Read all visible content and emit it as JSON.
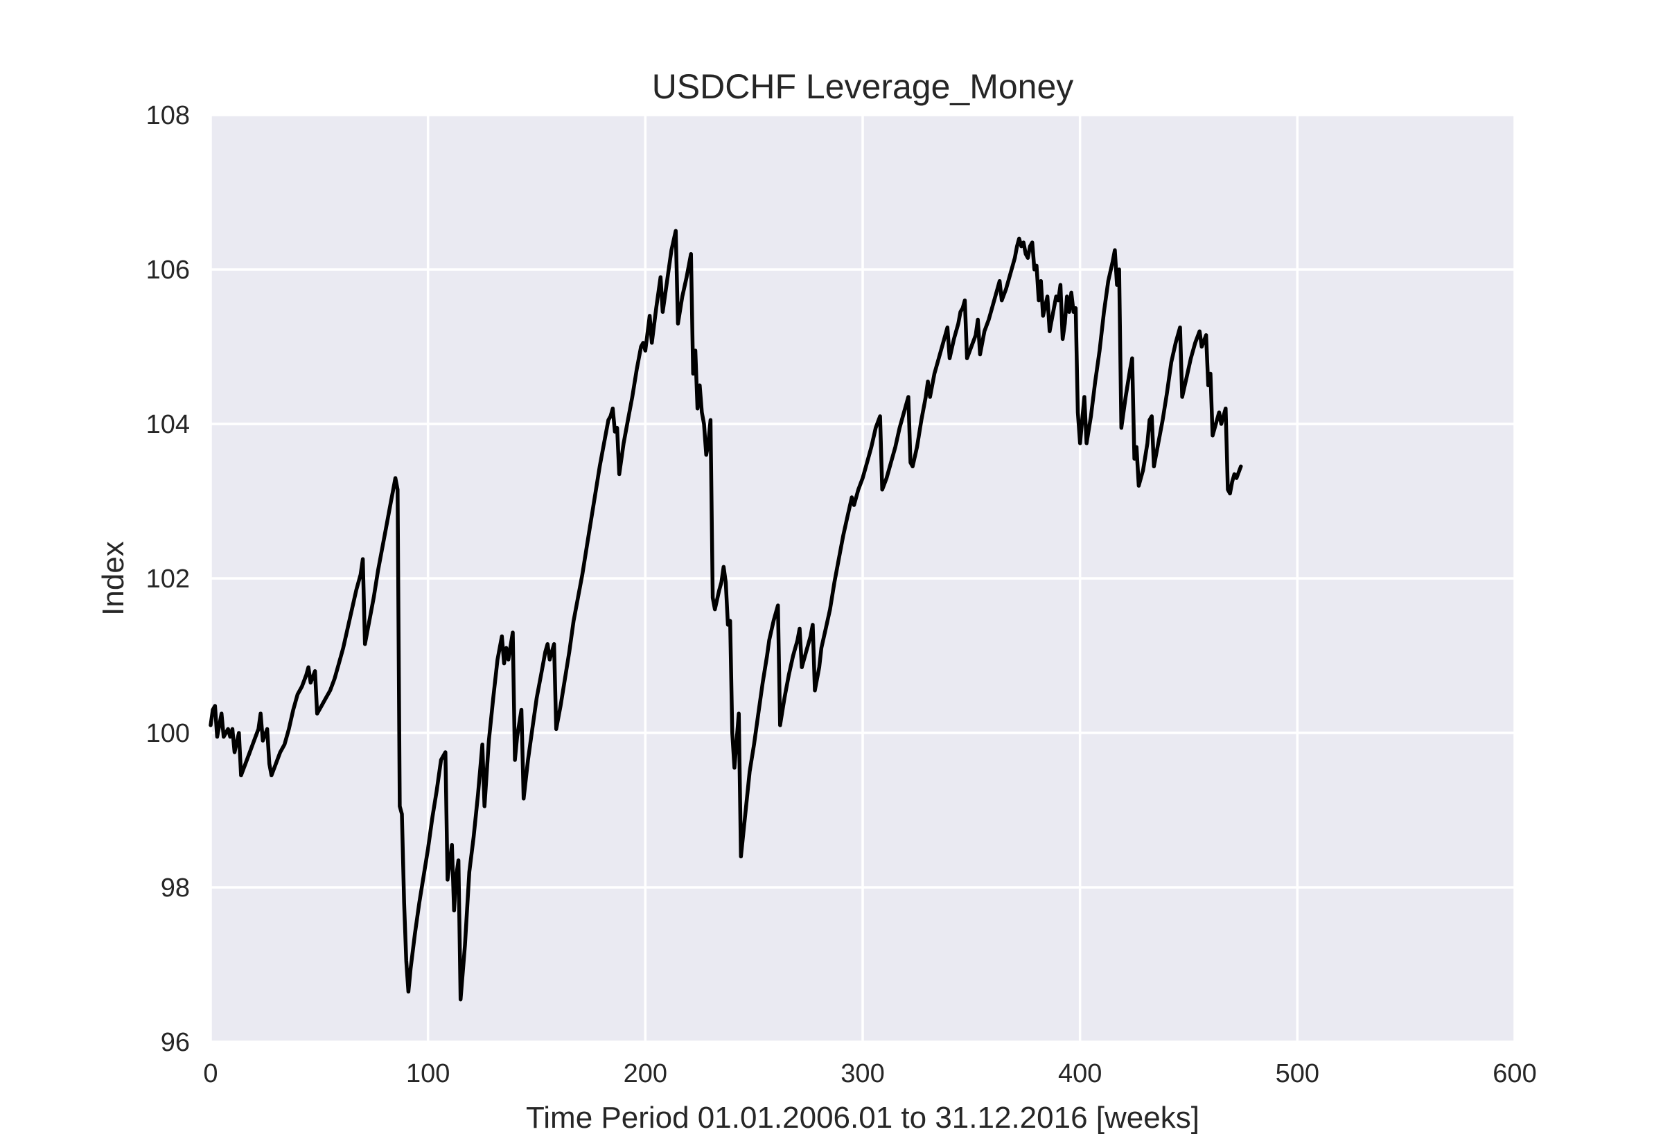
{
  "chart_data": {
    "type": "line",
    "title": "USDCHF Leverage_Money",
    "xlabel": "Time Period 01.01.2006.01 to 31.12.2016 [weeks]",
    "ylabel": "Index",
    "xlim": [
      0,
      600
    ],
    "ylim": [
      96,
      108
    ],
    "xticks": [
      0,
      100,
      200,
      300,
      400,
      500,
      600
    ],
    "yticks": [
      96,
      98,
      100,
      102,
      104,
      106,
      108
    ],
    "grid": true,
    "legend": "none",
    "colors": {
      "background": "#eaeaf2",
      "grid": "#ffffff",
      "line": "#000000"
    },
    "series": [
      {
        "values": [
          [
            0,
            100.1
          ],
          [
            1,
            100.3
          ],
          [
            2,
            100.35
          ],
          [
            3,
            99.95
          ],
          [
            5,
            100.25
          ],
          [
            6,
            99.95
          ],
          [
            8,
            100.05
          ],
          [
            9,
            99.95
          ],
          [
            10,
            100.05
          ],
          [
            11,
            99.75
          ],
          [
            13,
            100.0
          ],
          [
            14,
            99.45
          ],
          [
            16,
            99.6
          ],
          [
            18,
            99.75
          ],
          [
            20,
            99.9
          ],
          [
            22,
            100.05
          ],
          [
            23,
            100.25
          ],
          [
            24,
            99.9
          ],
          [
            26,
            100.05
          ],
          [
            27,
            99.6
          ],
          [
            28,
            99.45
          ],
          [
            30,
            99.6
          ],
          [
            32,
            99.75
          ],
          [
            34,
            99.85
          ],
          [
            36,
            100.05
          ],
          [
            38,
            100.3
          ],
          [
            40,
            100.5
          ],
          [
            42,
            100.6
          ],
          [
            44,
            100.75
          ],
          [
            45,
            100.85
          ],
          [
            46,
            100.65
          ],
          [
            48,
            100.8
          ],
          [
            49,
            100.25
          ],
          [
            51,
            100.35
          ],
          [
            53,
            100.45
          ],
          [
            55,
            100.55
          ],
          [
            57,
            100.7
          ],
          [
            59,
            100.9
          ],
          [
            61,
            101.1
          ],
          [
            63,
            101.35
          ],
          [
            65,
            101.6
          ],
          [
            67,
            101.85
          ],
          [
            69,
            102.05
          ],
          [
            70,
            102.25
          ],
          [
            71,
            101.15
          ],
          [
            73,
            101.45
          ],
          [
            75,
            101.75
          ],
          [
            77,
            102.1
          ],
          [
            79,
            102.4
          ],
          [
            81,
            102.7
          ],
          [
            83,
            103.0
          ],
          [
            84,
            103.15
          ],
          [
            85,
            103.3
          ],
          [
            86,
            103.15
          ],
          [
            87,
            99.05
          ],
          [
            88,
            98.95
          ],
          [
            89,
            97.8
          ],
          [
            90,
            97.05
          ],
          [
            91,
            96.65
          ],
          [
            92,
            96.95
          ],
          [
            94,
            97.4
          ],
          [
            96,
            97.8
          ],
          [
            98,
            98.15
          ],
          [
            100,
            98.5
          ],
          [
            102,
            98.9
          ],
          [
            104,
            99.25
          ],
          [
            106,
            99.65
          ],
          [
            108,
            99.75
          ],
          [
            109,
            98.1
          ],
          [
            111,
            98.55
          ],
          [
            112,
            97.7
          ],
          [
            113,
            98.15
          ],
          [
            114,
            98.35
          ],
          [
            115,
            96.55
          ],
          [
            117,
            97.25
          ],
          [
            119,
            98.2
          ],
          [
            121,
            98.65
          ],
          [
            123,
            99.2
          ],
          [
            125,
            99.85
          ],
          [
            126,
            99.05
          ],
          [
            128,
            99.9
          ],
          [
            130,
            100.45
          ],
          [
            132,
            100.95
          ],
          [
            134,
            101.25
          ],
          [
            135,
            100.9
          ],
          [
            136,
            101.1
          ],
          [
            137,
            100.95
          ],
          [
            139,
            101.3
          ],
          [
            140,
            99.65
          ],
          [
            141,
            99.95
          ],
          [
            143,
            100.3
          ],
          [
            144,
            99.15
          ],
          [
            146,
            99.65
          ],
          [
            148,
            100.05
          ],
          [
            150,
            100.45
          ],
          [
            152,
            100.75
          ],
          [
            154,
            101.05
          ],
          [
            155,
            101.15
          ],
          [
            156,
            100.95
          ],
          [
            158,
            101.15
          ],
          [
            159,
            100.05
          ],
          [
            161,
            100.35
          ],
          [
            163,
            100.7
          ],
          [
            165,
            101.05
          ],
          [
            167,
            101.45
          ],
          [
            169,
            101.75
          ],
          [
            171,
            102.05
          ],
          [
            173,
            102.4
          ],
          [
            175,
            102.75
          ],
          [
            177,
            103.1
          ],
          [
            179,
            103.45
          ],
          [
            181,
            103.75
          ],
          [
            183,
            104.05
          ],
          [
            184,
            104.1
          ],
          [
            185,
            104.2
          ],
          [
            186,
            103.9
          ],
          [
            187,
            103.95
          ],
          [
            188,
            103.35
          ],
          [
            190,
            103.75
          ],
          [
            192,
            104.05
          ],
          [
            194,
            104.35
          ],
          [
            196,
            104.7
          ],
          [
            198,
            105.0
          ],
          [
            199,
            105.05
          ],
          [
            200,
            104.95
          ],
          [
            202,
            105.4
          ],
          [
            203,
            105.05
          ],
          [
            205,
            105.5
          ],
          [
            207,
            105.9
          ],
          [
            208,
            105.45
          ],
          [
            210,
            105.85
          ],
          [
            212,
            106.25
          ],
          [
            214,
            106.5
          ],
          [
            215,
            105.3
          ],
          [
            217,
            105.65
          ],
          [
            219,
            105.9
          ],
          [
            221,
            106.2
          ],
          [
            222,
            104.65
          ],
          [
            223,
            104.95
          ],
          [
            224,
            104.2
          ],
          [
            225,
            104.5
          ],
          [
            226,
            104.15
          ],
          [
            227,
            104.0
          ],
          [
            228,
            103.6
          ],
          [
            229,
            103.75
          ],
          [
            230,
            104.05
          ],
          [
            231,
            101.75
          ],
          [
            232,
            101.6
          ],
          [
            234,
            101.85
          ],
          [
            235,
            101.95
          ],
          [
            236,
            102.15
          ],
          [
            237,
            101.95
          ],
          [
            238,
            101.4
          ],
          [
            239,
            101.45
          ],
          [
            240,
            100.0
          ],
          [
            241,
            99.55
          ],
          [
            243,
            100.25
          ],
          [
            244,
            98.4
          ],
          [
            246,
            98.95
          ],
          [
            248,
            99.5
          ],
          [
            250,
            99.85
          ],
          [
            252,
            100.25
          ],
          [
            254,
            100.65
          ],
          [
            256,
            101.0
          ],
          [
            257,
            101.2
          ],
          [
            259,
            101.45
          ],
          [
            261,
            101.65
          ],
          [
            262,
            100.1
          ],
          [
            264,
            100.45
          ],
          [
            266,
            100.75
          ],
          [
            268,
            101.0
          ],
          [
            270,
            101.2
          ],
          [
            271,
            101.35
          ],
          [
            272,
            100.85
          ],
          [
            274,
            101.05
          ],
          [
            276,
            101.25
          ],
          [
            277,
            101.4
          ],
          [
            278,
            100.55
          ],
          [
            280,
            100.85
          ],
          [
            281,
            101.1
          ],
          [
            283,
            101.35
          ],
          [
            285,
            101.6
          ],
          [
            287,
            101.95
          ],
          [
            289,
            102.25
          ],
          [
            291,
            102.55
          ],
          [
            293,
            102.8
          ],
          [
            295,
            103.05
          ],
          [
            296,
            102.95
          ],
          [
            298,
            103.15
          ],
          [
            300,
            103.3
          ],
          [
            302,
            103.5
          ],
          [
            304,
            103.7
          ],
          [
            306,
            103.95
          ],
          [
            308,
            104.1
          ],
          [
            309,
            103.15
          ],
          [
            311,
            103.3
          ],
          [
            313,
            103.5
          ],
          [
            315,
            103.7
          ],
          [
            317,
            103.95
          ],
          [
            319,
            104.15
          ],
          [
            321,
            104.35
          ],
          [
            322,
            103.5
          ],
          [
            323,
            103.45
          ],
          [
            325,
            103.7
          ],
          [
            327,
            104.05
          ],
          [
            329,
            104.35
          ],
          [
            330,
            104.55
          ],
          [
            331,
            104.35
          ],
          [
            333,
            104.65
          ],
          [
            335,
            104.85
          ],
          [
            337,
            105.05
          ],
          [
            339,
            105.25
          ],
          [
            340,
            104.85
          ],
          [
            342,
            105.1
          ],
          [
            344,
            105.3
          ],
          [
            345,
            105.45
          ],
          [
            346,
            105.5
          ],
          [
            347,
            105.6
          ],
          [
            348,
            104.85
          ],
          [
            350,
            105.0
          ],
          [
            352,
            105.15
          ],
          [
            353,
            105.35
          ],
          [
            354,
            104.9
          ],
          [
            356,
            105.2
          ],
          [
            358,
            105.35
          ],
          [
            360,
            105.55
          ],
          [
            362,
            105.75
          ],
          [
            363,
            105.85
          ],
          [
            364,
            105.6
          ],
          [
            366,
            105.75
          ],
          [
            368,
            105.95
          ],
          [
            370,
            106.15
          ],
          [
            371,
            106.3
          ],
          [
            372,
            106.4
          ],
          [
            373,
            106.3
          ],
          [
            374,
            106.35
          ],
          [
            375,
            106.2
          ],
          [
            376,
            106.15
          ],
          [
            377,
            106.3
          ],
          [
            378,
            106.35
          ],
          [
            379,
            106.0
          ],
          [
            380,
            106.05
          ],
          [
            381,
            105.6
          ],
          [
            382,
            105.85
          ],
          [
            383,
            105.4
          ],
          [
            385,
            105.65
          ],
          [
            386,
            105.2
          ],
          [
            388,
            105.5
          ],
          [
            389,
            105.65
          ],
          [
            390,
            105.6
          ],
          [
            391,
            105.8
          ],
          [
            392,
            105.1
          ],
          [
            393,
            105.3
          ],
          [
            394,
            105.65
          ],
          [
            395,
            105.45
          ],
          [
            396,
            105.7
          ],
          [
            397,
            105.45
          ],
          [
            398,
            105.5
          ],
          [
            399,
            104.15
          ],
          [
            400,
            103.75
          ],
          [
            402,
            104.35
          ],
          [
            403,
            103.75
          ],
          [
            405,
            104.1
          ],
          [
            407,
            104.55
          ],
          [
            409,
            104.95
          ],
          [
            411,
            105.45
          ],
          [
            413,
            105.85
          ],
          [
            415,
            106.1
          ],
          [
            416,
            106.25
          ],
          [
            417,
            105.8
          ],
          [
            418,
            106.0
          ],
          [
            419,
            103.95
          ],
          [
            421,
            104.35
          ],
          [
            423,
            104.7
          ],
          [
            424,
            104.85
          ],
          [
            425,
            103.55
          ],
          [
            426,
            103.7
          ],
          [
            427,
            103.2
          ],
          [
            429,
            103.4
          ],
          [
            431,
            103.75
          ],
          [
            432,
            104.05
          ],
          [
            433,
            104.1
          ],
          [
            434,
            103.45
          ],
          [
            436,
            103.75
          ],
          [
            438,
            104.05
          ],
          [
            440,
            104.4
          ],
          [
            442,
            104.8
          ],
          [
            444,
            105.05
          ],
          [
            446,
            105.25
          ],
          [
            447,
            104.35
          ],
          [
            449,
            104.6
          ],
          [
            451,
            104.85
          ],
          [
            453,
            105.05
          ],
          [
            455,
            105.2
          ],
          [
            456,
            105.0
          ],
          [
            458,
            105.15
          ],
          [
            459,
            104.5
          ],
          [
            460,
            104.65
          ],
          [
            461,
            103.85
          ],
          [
            462,
            103.95
          ],
          [
            464,
            104.15
          ],
          [
            465,
            104.0
          ],
          [
            467,
            104.2
          ],
          [
            468,
            103.15
          ],
          [
            469,
            103.1
          ],
          [
            470,
            103.25
          ],
          [
            471,
            103.35
          ],
          [
            472,
            103.3
          ],
          [
            474,
            103.45
          ]
        ]
      }
    ]
  }
}
